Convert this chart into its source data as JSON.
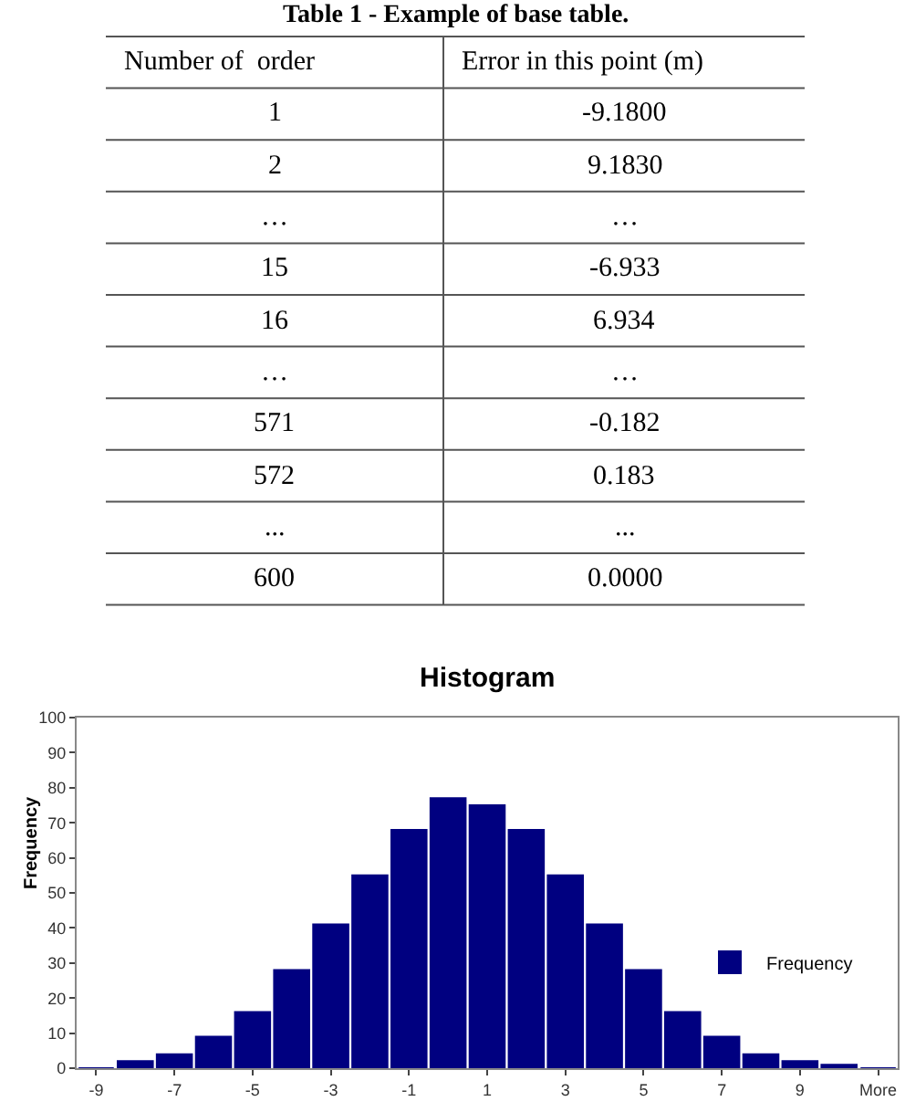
{
  "chart_data": [
    {
      "type": "other",
      "title": "Table 1 - Example of base table.",
      "annotations": [
        "Number of  order",
        "Error in this point (m)",
        "1",
        "-9.1800",
        "2",
        "9.1830",
        "…",
        "…",
        "15",
        "-6.933",
        "16",
        "6.934",
        "…",
        "…",
        "571",
        "-0.182",
        "572",
        "0.183",
        "...",
        "...",
        "600",
        "0.0000"
      ]
    },
    {
      "type": "bar",
      "title": "Histogram",
      "ylabel": "Frequency",
      "categories": [
        "-9",
        null,
        "-7",
        null,
        "-5",
        null,
        "-3",
        null,
        "-1",
        null,
        "1",
        null,
        "3",
        null,
        "5",
        null,
        "7",
        null,
        "9",
        null,
        "More"
      ],
      "series": [
        {
          "name": "Frequency",
          "color": "#000080",
          "values": [
            0,
            2,
            4,
            9,
            16,
            28,
            41,
            55,
            68,
            77,
            75,
            68,
            55,
            41,
            28,
            16,
            9,
            4,
            2,
            1,
            0
          ]
        }
      ],
      "ylim": [
        0,
        100
      ],
      "yticks": [
        0,
        10,
        20,
        30,
        40,
        50,
        60,
        70,
        80,
        90,
        100
      ],
      "legend": "right"
    }
  ]
}
